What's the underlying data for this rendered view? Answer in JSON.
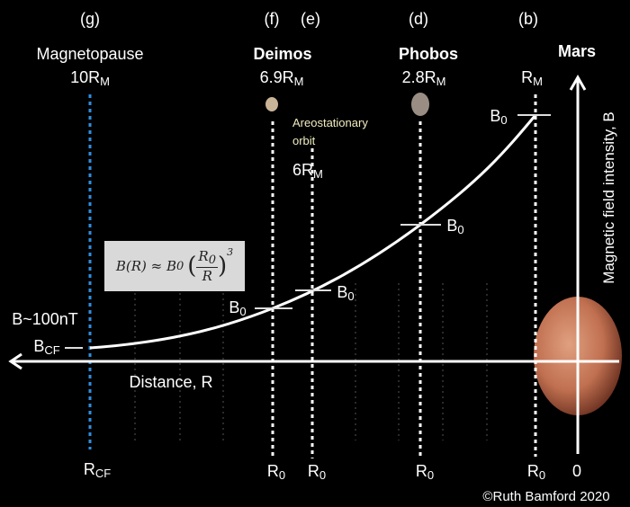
{
  "labels": {
    "g": "(g)",
    "f": "(f)",
    "e": "(e)",
    "d": "(d)",
    "b": "(b)"
  },
  "magnetopause": {
    "name": "Magnetopause",
    "distance": "10R",
    "sub": "M"
  },
  "deimos": {
    "name": "Deimos",
    "distance": "6.9R",
    "sub": "M"
  },
  "phobos": {
    "name": "Phobos",
    "distance": "2.8R",
    "sub": "M"
  },
  "areostationary": {
    "name": "Areostationary",
    "name2": "orbit",
    "distance": "6R",
    "sub": "M"
  },
  "mars": {
    "name": "Mars",
    "distance": "R",
    "sub": "M"
  },
  "b0": {
    "main": "B",
    "sub": "0"
  },
  "bcf": {
    "main": "B",
    "sub": "CF"
  },
  "b_field": "B~100nT",
  "x_axis_label": "Distance, R",
  "y_axis_label": "Magnetic field intensity, B",
  "formula": "B(R) ≈ B₀ (R₀/R)³",
  "formula_parts": {
    "lhs": "B(R) ≈ B",
    "lhs_sub": "0",
    "num": "R",
    "num_sub": "0",
    "den": "R",
    "exp": "3"
  },
  "bottom": {
    "rcf": "R",
    "rcf_sub": "CF",
    "r0": "R",
    "r0_sub": "0",
    "zero": "0"
  },
  "copyright": "©Ruth Bamford 2020",
  "colors": {
    "magnetopause_line": "#2f8fe0",
    "orbit_text": "#f0ecc0",
    "formula_bg": "#d9d9d9"
  }
}
